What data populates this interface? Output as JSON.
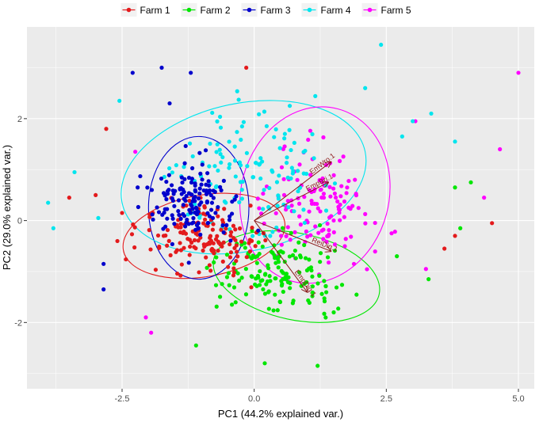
{
  "chart_data": {
    "type": "scatter",
    "xlabel": "PC1 (44.2% explained var.)",
    "ylabel": "PC2 (29.0% explained var.)",
    "xlim": [
      -4.3,
      5.3
    ],
    "ylim": [
      -3.3,
      3.8
    ],
    "x_ticks": [
      -2.5,
      0.0,
      2.5,
      5.0
    ],
    "x_tick_labels": [
      "-2.5",
      "0.0",
      "2.5",
      "5.0"
    ],
    "y_ticks": [
      -2,
      0,
      2
    ],
    "y_tick_labels": [
      "-2",
      "0",
      "2"
    ],
    "grid": true,
    "legend_position": "top",
    "series": [
      {
        "name": "Farm 1",
        "color": "#e31a1c",
        "center": [
          -0.95,
          -0.3
        ],
        "spread": [
          0.85,
          0.45
        ],
        "n": 150,
        "ellipse": {
          "cx": -0.95,
          "cy": -0.3,
          "rx": 1.55,
          "ry": 0.8,
          "angle": -10
        },
        "outliers": [
          [
            -2.8,
            1.8
          ],
          [
            -3.5,
            0.45
          ],
          [
            -3.0,
            0.5
          ],
          [
            -0.15,
            3.0
          ],
          [
            3.6,
            -0.55
          ],
          [
            4.5,
            -0.05
          ],
          [
            3.8,
            -0.3
          ],
          [
            -2.5,
            0.15
          ]
        ]
      },
      {
        "name": "Farm 2",
        "color": "#00e600",
        "center": [
          0.4,
          -1.0
        ],
        "spread": [
          0.85,
          0.5
        ],
        "n": 150,
        "ellipse": {
          "cx": 0.8,
          "cy": -1.1,
          "rx": 1.6,
          "ry": 0.85,
          "angle": 12
        },
        "outliers": [
          [
            3.8,
            0.65
          ],
          [
            4.1,
            0.75
          ],
          [
            3.9,
            -0.15
          ],
          [
            -1.1,
            -2.45
          ],
          [
            0.2,
            -2.8
          ],
          [
            1.2,
            -2.85
          ],
          [
            2.7,
            -0.7
          ],
          [
            3.3,
            -1.15
          ]
        ]
      },
      {
        "name": "Farm 3",
        "color": "#0000cc",
        "center": [
          -1.15,
          0.35
        ],
        "spread": [
          0.55,
          0.55
        ],
        "n": 150,
        "ellipse": {
          "cx": -1.05,
          "cy": 0.25,
          "rx": 0.95,
          "ry": 1.4,
          "angle": 0
        },
        "outliers": [
          [
            -2.85,
            -1.35
          ],
          [
            -2.85,
            -0.85
          ],
          [
            -2.3,
            2.9
          ],
          [
            -1.2,
            2.9
          ],
          [
            -1.75,
            3.0
          ],
          [
            -1.6,
            2.3
          ]
        ]
      },
      {
        "name": "Farm 4",
        "color": "#00e5ee",
        "center": [
          -0.2,
          0.9
        ],
        "spread": [
          1.2,
          0.9
        ],
        "n": 130,
        "ellipse": {
          "cx": -0.2,
          "cy": 0.85,
          "rx": 2.35,
          "ry": 1.45,
          "angle": -12
        },
        "outliers": [
          [
            -3.9,
            0.35
          ],
          [
            -3.8,
            -0.15
          ],
          [
            -3.4,
            0.95
          ],
          [
            -2.95,
            0.05
          ],
          [
            -2.55,
            2.35
          ],
          [
            2.4,
            3.45
          ],
          [
            2.1,
            2.6
          ],
          [
            3.0,
            1.95
          ],
          [
            3.35,
            2.1
          ],
          [
            3.8,
            1.55
          ],
          [
            2.8,
            1.65
          ]
        ]
      },
      {
        "name": "Farm 5",
        "color": "#ff00ff",
        "center": [
          1.2,
          0.3
        ],
        "spread": [
          0.75,
          0.75
        ],
        "n": 130,
        "ellipse": {
          "cx": 1.15,
          "cy": 0.5,
          "rx": 1.4,
          "ry": 1.75,
          "angle": 15
        },
        "outliers": [
          [
            5.0,
            2.9
          ],
          [
            4.65,
            1.4
          ],
          [
            4.35,
            0.45
          ],
          [
            3.25,
            -0.95
          ],
          [
            3.05,
            1.95
          ],
          [
            2.6,
            -0.25
          ],
          [
            -2.05,
            -1.9
          ],
          [
            -1.95,
            -2.2
          ],
          [
            -2.25,
            1.35
          ]
        ]
      }
    ],
    "arrows": [
      {
        "label": "EmWro.1",
        "x": 1.45,
        "y": 1.15
      },
      {
        "label": "EmpBri.1",
        "x": 1.4,
        "y": 0.75
      },
      {
        "label": "ReiDiq.1",
        "x": 1.45,
        "y": -0.6
      },
      {
        "label": "EmpDiq.1",
        "x": 1.0,
        "y": -1.4
      }
    ]
  }
}
